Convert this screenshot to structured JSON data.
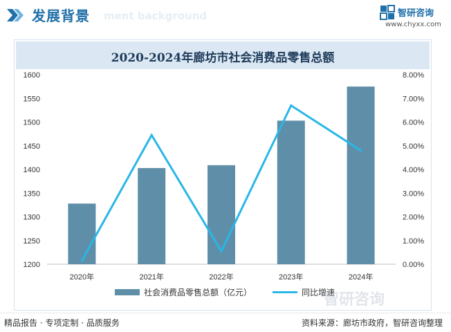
{
  "header": {
    "title": "发展背景",
    "ghost_text": "ment background",
    "icon": "double-chevron-icon"
  },
  "logo": {
    "name": "智研咨询",
    "url": "www.chyxx.com",
    "icon": "zhiyan-logo-icon",
    "brand_color": "#1f6fa8"
  },
  "watermark_text": "智研咨询",
  "chart_data": {
    "type": "bar",
    "title": "2020-2024年廊坊市社会消费品零售总额",
    "categories": [
      "2020年",
      "2021年",
      "2022年",
      "2023年",
      "2024年"
    ],
    "series": [
      {
        "name": "社会消费品零售总额（亿元）",
        "type": "bar",
        "axis": "left",
        "color": "#5f8fa8",
        "values": [
          1328,
          1403,
          1409,
          1503,
          1575
        ]
      },
      {
        "name": "同比增速",
        "type": "line",
        "axis": "right",
        "color": "#29b6e8",
        "values": [
          0.15,
          5.45,
          0.55,
          6.7,
          4.8
        ]
      }
    ],
    "y_left": {
      "min": 1200,
      "max": 1600,
      "step": 50,
      "ticks": [
        "1200",
        "1250",
        "1300",
        "1350",
        "1400",
        "1450",
        "1500",
        "1550",
        "1600"
      ]
    },
    "y_right": {
      "min": 0,
      "max": 8,
      "step": 1,
      "ticks": [
        "0.00%",
        "1.00%",
        "2.00%",
        "3.00%",
        "4.00%",
        "5.00%",
        "6.00%",
        "7.00%",
        "8.00%"
      ]
    },
    "grid": false,
    "legend": "bottom"
  },
  "footer": {
    "left": "精品报告 · 专项定制 · 品质服务",
    "right": "资料来源：廊坊市政府，智研咨询整理"
  }
}
